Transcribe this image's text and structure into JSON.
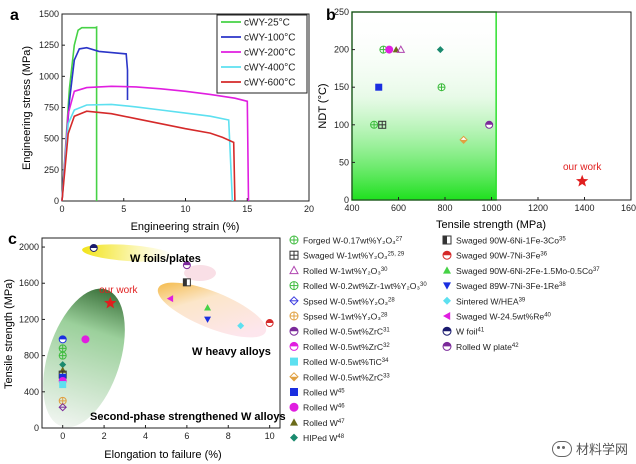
{
  "chart_data": [
    {
      "panel": "a",
      "type": "line",
      "title": "",
      "xlabel": "Engineering strain (%)",
      "ylabel": "Engineering stress (MPa)",
      "xlim": [
        0,
        20
      ],
      "ylim": [
        0,
        1500
      ],
      "xticks": [
        0,
        5,
        10,
        15,
        20
      ],
      "yticks": [
        0,
        250,
        500,
        750,
        1000,
        1250,
        1500
      ],
      "legend_position": "top-right",
      "series": [
        {
          "name": "cWY-25°C",
          "color": "#46d246",
          "x": [
            0,
            0.6,
            1.0,
            1.3,
            1.6,
            2.0,
            2.7,
            2.8,
            2.8
          ],
          "y": [
            0,
            900,
            1250,
            1370,
            1390,
            1390,
            1390,
            1395,
            0
          ]
        },
        {
          "name": "cWY-100°C",
          "color": "#2b35c8",
          "x": [
            0,
            0.6,
            1.0,
            1.4,
            2.0,
            3.0,
            4.0,
            5.2,
            5.3,
            5.3
          ],
          "y": [
            0,
            800,
            1130,
            1220,
            1230,
            1200,
            1190,
            1180,
            1050,
            810
          ]
        },
        {
          "name": "cWY-200°C",
          "color": "#e01ee0",
          "x": [
            0,
            0.5,
            1.0,
            2.0,
            4.0,
            6.0,
            8.0,
            10.0,
            12.0,
            14.0,
            15.0,
            15.1
          ],
          "y": [
            0,
            700,
            880,
            910,
            920,
            915,
            900,
            880,
            855,
            825,
            800,
            0
          ]
        },
        {
          "name": "cWY-400°C",
          "color": "#5de0f0",
          "x": [
            0,
            0.5,
            1.0,
            2.0,
            4.0,
            6.0,
            8.0,
            10.0,
            12.0,
            13.5,
            13.8
          ],
          "y": [
            0,
            620,
            730,
            770,
            775,
            755,
            730,
            705,
            680,
            650,
            0
          ]
        },
        {
          "name": "cWY-600°C",
          "color": "#d52a2a",
          "x": [
            0,
            0.5,
            1.0,
            2.0,
            4.0,
            6.0,
            8.0,
            10.0,
            12.0,
            13.0,
            13.9,
            14.0
          ],
          "y": [
            0,
            540,
            680,
            720,
            700,
            660,
            620,
            580,
            545,
            510,
            470,
            0
          ]
        }
      ]
    },
    {
      "panel": "b",
      "type": "scatter",
      "xlabel": "Tensile strength (MPa)",
      "ylabel": "NDT (°C)",
      "xlim": [
        400,
        1600
      ],
      "ylim": [
        0,
        250
      ],
      "xticks": [
        400,
        600,
        800,
        1000,
        1200,
        1400,
        1600
      ],
      "yticks": [
        0,
        50,
        100,
        150,
        200,
        250
      ],
      "region": {
        "x": [
          400,
          1020
        ],
        "y": [
          0,
          250
        ],
        "color": "#2ee02e"
      },
      "annotation": "our work",
      "points": [
        {
          "x": 495,
          "y": 100,
          "marker": "circle-plus",
          "color": "#3dbb3d"
        },
        {
          "x": 530,
          "y": 100,
          "marker": "square-plus",
          "color": "#333333"
        },
        {
          "x": 535,
          "y": 200,
          "marker": "circle-plus",
          "color": "#3dbb3d"
        },
        {
          "x": 560,
          "y": 200,
          "marker": "circle",
          "color": "#e01ee0"
        },
        {
          "x": 590,
          "y": 200,
          "marker": "triangle",
          "color": "#6b6b1a"
        },
        {
          "x": 610,
          "y": 200,
          "marker": "triangle-open",
          "color": "#b046b0"
        },
        {
          "x": 515,
          "y": 150,
          "marker": "square",
          "color": "#1a2ee0"
        },
        {
          "x": 780,
          "y": 200,
          "marker": "diamond",
          "color": "#1a8a6e"
        },
        {
          "x": 785,
          "y": 150,
          "marker": "circle-plus",
          "color": "#3dbb3d"
        },
        {
          "x": 880,
          "y": 80,
          "marker": "diamond-half",
          "color": "#e0a040"
        },
        {
          "x": 990,
          "y": 100,
          "marker": "circle-half",
          "color": "#7b2a9a"
        },
        {
          "x": 1390,
          "y": 25,
          "marker": "star",
          "color": "#e01e1e"
        }
      ]
    },
    {
      "panel": "c",
      "type": "scatter",
      "xlabel": "Elongation to failure (%)",
      "ylabel": "Tensile strength (MPa)",
      "xlim": [
        -1,
        10.5
      ],
      "ylim": [
        0,
        2100
      ],
      "xticks": [
        0,
        2,
        4,
        6,
        8,
        10
      ],
      "yticks": [
        0,
        400,
        800,
        1200,
        1600,
        2000
      ],
      "region_labels": [
        "W foils/plates",
        "W heavy alloys",
        "Second-phase strengthened W alloys"
      ],
      "annotation": "our work",
      "points": [
        {
          "x": 1.5,
          "y": 1990,
          "marker": "circle-half",
          "color": "#1a1a6e"
        },
        {
          "x": 6.0,
          "y": 1800,
          "marker": "circle-half",
          "color": "#7b2a9a"
        },
        {
          "x": 2.3,
          "y": 1380,
          "marker": "star",
          "color": "#e01e1e"
        },
        {
          "x": 6.0,
          "y": 1610,
          "marker": "square-half",
          "color": "#333333"
        },
        {
          "x": 5.2,
          "y": 1430,
          "marker": "triangle-left",
          "color": "#e01ee0"
        },
        {
          "x": 7.0,
          "y": 1330,
          "marker": "triangle",
          "color": "#46d246"
        },
        {
          "x": 7.0,
          "y": 1200,
          "marker": "triangle-down",
          "color": "#1a2ee0"
        },
        {
          "x": 8.6,
          "y": 1130,
          "marker": "diamond",
          "color": "#5de0f0"
        },
        {
          "x": 10.0,
          "y": 1160,
          "marker": "circle-half",
          "color": "#d52a2a"
        },
        {
          "x": 1.1,
          "y": 980,
          "marker": "circle",
          "color": "#e01ee0"
        },
        {
          "x": 0,
          "y": 980,
          "marker": "circle-half",
          "color": "#1a2ee0"
        },
        {
          "x": 0,
          "y": 880,
          "marker": "circle-plus",
          "color": "#3dbb3d"
        },
        {
          "x": 0,
          "y": 800,
          "marker": "circle-plus",
          "color": "#3dbb3d"
        },
        {
          "x": 0,
          "y": 700,
          "marker": "diamond",
          "color": "#1a8a6e"
        },
        {
          "x": 0,
          "y": 640,
          "marker": "triangle",
          "color": "#6b6b1a"
        },
        {
          "x": 0,
          "y": 590,
          "marker": "square-plus",
          "color": "#333333"
        },
        {
          "x": 0,
          "y": 560,
          "marker": "square",
          "color": "#1a2ee0"
        },
        {
          "x": 0,
          "y": 520,
          "marker": "circle",
          "color": "#e01ee0"
        },
        {
          "x": 0,
          "y": 480,
          "marker": "square",
          "color": "#5de0f0"
        },
        {
          "x": 0,
          "y": 300,
          "marker": "circle-plus",
          "color": "#e0a040"
        },
        {
          "x": 0,
          "y": 230,
          "marker": "diamond-open",
          "color": "#7b2a9a"
        }
      ],
      "legend": [
        {
          "label": "Forged W-0.17wt%Y₂O₃",
          "ref": "27",
          "marker": "circle-plus",
          "color": "#3dbb3d"
        },
        {
          "label": "Swaged W-1wt%Y₂O₃",
          "ref": "25, 29",
          "marker": "square-plus",
          "color": "#333333"
        },
        {
          "label": "Rolled W-1wt%Y₂O₃",
          "ref": "30",
          "marker": "triangle-open",
          "color": "#b046b0"
        },
        {
          "label": "Rolled W-0.2wt%Zr-1wt%Y₂O₃",
          "ref": "30",
          "marker": "circle-plus",
          "color": "#3dbb3d"
        },
        {
          "label": "Spsed W-0.5wt%Y₂O₃",
          "ref": "28",
          "marker": "diamond-open",
          "color": "#3a3ae0"
        },
        {
          "label": "Spsed W-1wt%Y₂O₃",
          "ref": "28",
          "marker": "circle-plus",
          "color": "#e0a040"
        },
        {
          "label": "Rolled W-0.5wt%ZrC",
          "ref": "31",
          "marker": "circle-half",
          "color": "#7b2a9a"
        },
        {
          "label": "Rolled W-0.5wt%ZrC",
          "ref": "32",
          "marker": "circle-half",
          "color": "#e01ee0"
        },
        {
          "label": "Rolled W-0.5wt%TiC",
          "ref": "34",
          "marker": "square",
          "color": "#5de0f0"
        },
        {
          "label": "Rolled W-0.5wt%ZrC",
          "ref": "33",
          "marker": "diamond-half",
          "color": "#e0a040"
        },
        {
          "label": "Rolled W",
          "ref": "45",
          "marker": "square",
          "color": "#1a2ee0"
        },
        {
          "label": "Rolled W",
          "ref": "46",
          "marker": "circle",
          "color": "#e01ee0"
        },
        {
          "label": "Rolled W",
          "ref": "47",
          "marker": "triangle",
          "color": "#6b6b1a"
        },
        {
          "label": "HIPed W",
          "ref": "48",
          "marker": "diamond",
          "color": "#1a8a6e"
        },
        {
          "label": "Swaged 90W-6Ni-1Fe-3Co",
          "ref": "35",
          "marker": "square-half",
          "color": "#333333"
        },
        {
          "label": "Swaged 90W-7Ni-3Fe",
          "ref": "36",
          "marker": "circle-half",
          "color": "#d52a2a"
        },
        {
          "label": "Swaged 90W-6Ni-2Fe-1.5Mo-0.5Co",
          "ref": "37",
          "marker": "triangle",
          "color": "#46d246"
        },
        {
          "label": "Swaged 89W-7Ni-3Fe-1Re",
          "ref": "38",
          "marker": "triangle-down",
          "color": "#1a2ee0"
        },
        {
          "label": "Sintered W/HEA",
          "ref": "39",
          "marker": "diamond",
          "color": "#5de0f0"
        },
        {
          "label": "Swaged W-24.5wt%Re",
          "ref": "40",
          "marker": "triangle-left",
          "color": "#e01ee0"
        },
        {
          "label": "W foil",
          "ref": "41",
          "marker": "circle-half",
          "color": "#1a1a6e"
        },
        {
          "label": "Rolled W plate",
          "ref": "42",
          "marker": "circle-half",
          "color": "#7b2a9a"
        }
      ]
    }
  ],
  "panel_labels": {
    "a": "a",
    "b": "b",
    "c": "c"
  },
  "watermark": {
    "text": "材料学网"
  }
}
